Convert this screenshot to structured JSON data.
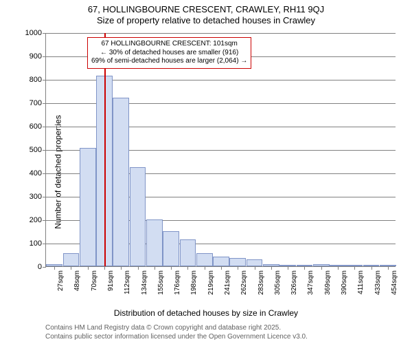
{
  "title_line1": "67, HOLLINGBOURNE CRESCENT, CRAWLEY, RH11 9QJ",
  "title_line2": "Size of property relative to detached houses in Crawley",
  "ylabel": "Number of detached properties",
  "xlabel": "Distribution of detached houses by size in Crawley",
  "footer_line1": "Contains HM Land Registry data © Crown copyright and database right 2025.",
  "footer_line2": "Contains public sector information licensed under the Open Government Licence v3.0.",
  "chart": {
    "type": "histogram",
    "ylim": [
      0,
      1000
    ],
    "ytick_step": 100,
    "background_color": "#ffffff",
    "grid_color": "#808080",
    "bar_fill": "#d2ddf2",
    "bar_stroke": "#7f94c7",
    "bar_stroke_width": 1,
    "marker_color": "#cc0000",
    "annotation_border": "#cc0000",
    "label_fontsize": 12,
    "tick_fontsize": 10,
    "categories": [
      "27sqm",
      "48sqm",
      "70sqm",
      "91sqm",
      "112sqm",
      "134sqm",
      "155sqm",
      "176sqm",
      "198sqm",
      "219sqm",
      "241sqm",
      "262sqm",
      "283sqm",
      "305sqm",
      "326sqm",
      "347sqm",
      "369sqm",
      "390sqm",
      "411sqm",
      "433sqm",
      "454sqm"
    ],
    "values": [
      10,
      55,
      505,
      815,
      720,
      425,
      200,
      150,
      115,
      55,
      40,
      35,
      30,
      10,
      5,
      5,
      10,
      0,
      0,
      0,
      2
    ],
    "marker_bin_index": 3,
    "annotation": {
      "line1": "67 HOLLINGBOURNE CRESCENT: 101sqm",
      "line2": "← 30% of detached houses are smaller (916)",
      "line3": "69% of semi-detached houses are larger (2,064) →"
    }
  }
}
